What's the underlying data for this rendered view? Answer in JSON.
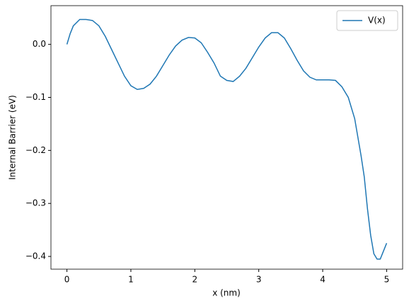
{
  "chart_data": {
    "type": "line",
    "xlabel": "x (nm)",
    "ylabel": "Internal Barrier (eV)",
    "x": [
      0,
      0.05,
      0.1,
      0.2,
      0.3,
      0.4,
      0.5,
      0.6,
      0.7,
      0.8,
      0.9,
      1.0,
      1.1,
      1.2,
      1.3,
      1.4,
      1.5,
      1.6,
      1.7,
      1.8,
      1.9,
      2.0,
      2.1,
      2.2,
      2.3,
      2.4,
      2.5,
      2.6,
      2.7,
      2.8,
      2.9,
      3.0,
      3.1,
      3.2,
      3.3,
      3.4,
      3.5,
      3.6,
      3.7,
      3.8,
      3.9,
      4.0,
      4.1,
      4.2,
      4.3,
      4.4,
      4.5,
      4.6,
      4.65,
      4.7,
      4.75,
      4.8,
      4.85,
      4.9,
      4.95,
      5.0
    ],
    "series": [
      {
        "name": "V(x)",
        "color": "#1f77b4",
        "values": [
          0.0,
          0.02,
          0.035,
          0.047,
          0.047,
          0.045,
          0.035,
          0.015,
          -0.01,
          -0.035,
          -0.06,
          -0.078,
          -0.085,
          -0.083,
          -0.075,
          -0.06,
          -0.04,
          -0.02,
          -0.003,
          0.008,
          0.013,
          0.012,
          0.003,
          -0.015,
          -0.035,
          -0.06,
          -0.068,
          -0.07,
          -0.06,
          -0.045,
          -0.025,
          -0.005,
          0.012,
          0.022,
          0.022,
          0.012,
          -0.008,
          -0.03,
          -0.05,
          -0.062,
          -0.067,
          -0.067,
          -0.067,
          -0.068,
          -0.08,
          -0.1,
          -0.14,
          -0.21,
          -0.25,
          -0.31,
          -0.36,
          -0.395,
          -0.405,
          -0.405,
          -0.39,
          -0.375
        ]
      }
    ],
    "xlim": [
      -0.25,
      5.25
    ],
    "ylim": [
      -0.424,
      0.073
    ],
    "xticks": [
      0,
      1,
      2,
      3,
      4,
      5
    ],
    "yticks": [
      {
        "value": 0,
        "label": "0.0"
      },
      {
        "value": -0.1,
        "label": "−0.1"
      },
      {
        "value": -0.2,
        "label": "−0.2"
      },
      {
        "value": -0.3,
        "label": "−0.3"
      },
      {
        "value": -0.4,
        "label": "−0.4"
      }
    ],
    "legend": "upper right",
    "grid": false
  }
}
